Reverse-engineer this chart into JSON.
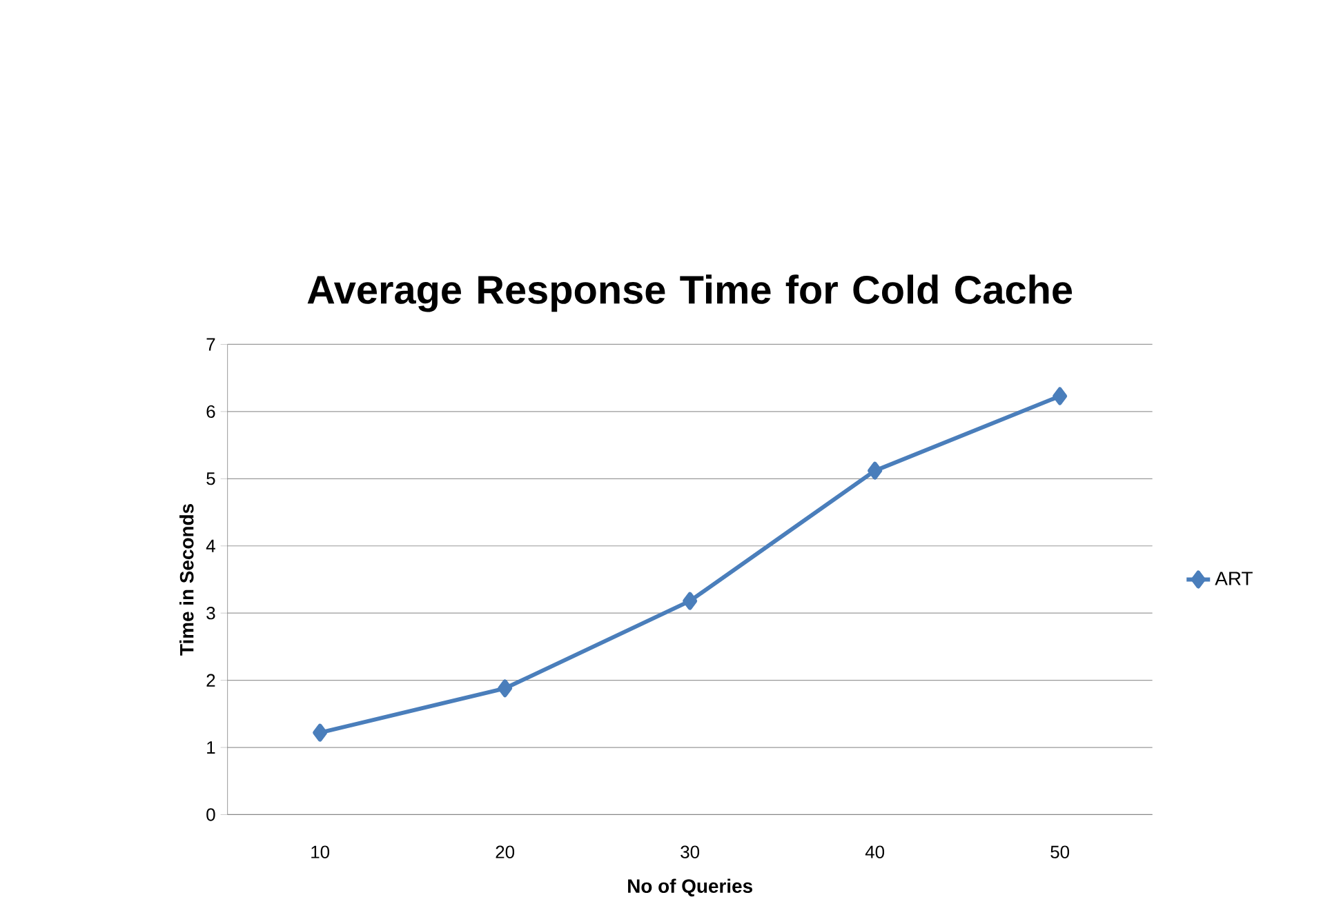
{
  "chart_data": {
    "type": "line",
    "title": "Average Response Time for Cold Cache",
    "xlabel": "No of Queries",
    "ylabel": "Time in Seconds",
    "categories": [
      "10",
      "20",
      "30",
      "40",
      "50"
    ],
    "series": [
      {
        "name": "ART",
        "color": "#4a7ebb",
        "values": [
          1.22,
          1.88,
          3.18,
          5.12,
          6.23
        ]
      }
    ],
    "ylim": [
      0,
      7
    ],
    "yticks": [
      0,
      1,
      2,
      3,
      4,
      5,
      6,
      7
    ],
    "grid": "y",
    "legend": "right",
    "marker": "diamond",
    "line_style": "solid"
  }
}
